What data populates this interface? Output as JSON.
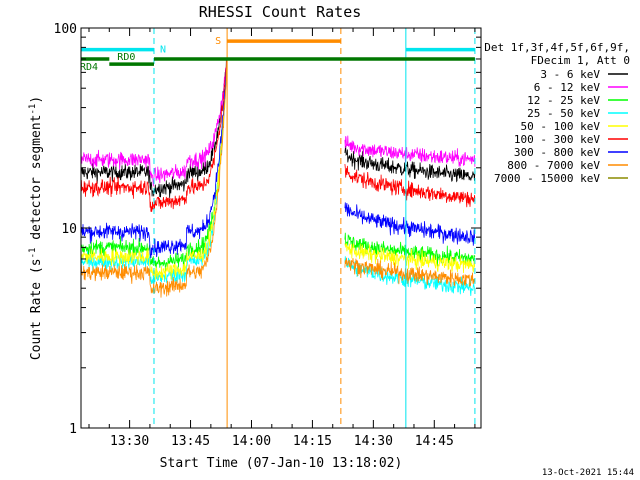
{
  "chart_data": {
    "type": "line",
    "title": "RHESSI Count Rates",
    "xlabel": "Start Time (07-Jan-10 13:18:02)",
    "ylabel": "Count Rate (s",
    "ylabel_sup": "-1",
    "ylabel_mid": " detector segment",
    "ylabel_tail": ")",
    "yscale": "log",
    "ylim": [
      1,
      100
    ],
    "xlim": [
      "13:18:02",
      "14:56:30"
    ],
    "x_ticks": [
      "13:30",
      "13:45",
      "14:00",
      "14:15",
      "14:30",
      "14:45"
    ],
    "y_ticks": [
      "1",
      "10",
      "100"
    ],
    "legend_placement": "right",
    "legend_header": [
      "Det 1f,3f,4f,5f,6f,9f,",
      "FDecim 1, Att 0"
    ],
    "series": [
      {
        "name": "3 - 6 keV",
        "color": "#000000",
        "pre_flare": 19,
        "post_flare": [
          24,
          18
        ]
      },
      {
        "name": "6 - 12 keV",
        "color": "#ff00ff",
        "pre_flare": 22,
        "post_flare": [
          27,
          22
        ]
      },
      {
        "name": "12 - 25 keV",
        "color": "#00ff00",
        "pre_flare": 8,
        "post_flare": [
          9,
          7
        ]
      },
      {
        "name": "25 - 50 keV",
        "color": "#00ffff",
        "pre_flare": 6.8,
        "post_flare": [
          7,
          5
        ]
      },
      {
        "name": "50 - 100 keV",
        "color": "#ffff00",
        "pre_flare": 7.2,
        "post_flare": [
          8.2,
          6.5
        ]
      },
      {
        "name": "100 - 300 keV",
        "color": "#ff0000",
        "pre_flare": 16,
        "post_flare": [
          20,
          14
        ]
      },
      {
        "name": "300 - 800 keV",
        "color": "#0000ff",
        "pre_flare": 9.6,
        "post_flare": [
          13,
          9
        ]
      },
      {
        "name": "800 - 7000 keV",
        "color": "#ff8c00",
        "pre_flare": 6,
        "post_flare": [
          7,
          5.5
        ]
      },
      {
        "name": "7000 - 15000 keV",
        "color": "#8b8b00",
        "pre_flare": null,
        "post_flare": null
      }
    ],
    "flags": [
      {
        "label": "N",
        "color": "#00e5ee",
        "start": "13:18:02",
        "end": "13:36:00",
        "value": 78
      },
      {
        "label": "N",
        "color": "#00e5ee",
        "start": "14:38:00",
        "end": "14:55:00",
        "value": 78
      },
      {
        "label": "RD0",
        "color": "#007700",
        "start": "13:25:00",
        "end": "13:36:00",
        "value": 66
      },
      {
        "label": "RD4",
        "color": "#007700",
        "start": "13:18:02",
        "end": "13:25:00",
        "value": 70
      },
      {
        "label": "",
        "color": "#007700",
        "start": "13:36:00",
        "end": "14:55:00",
        "value": 70
      },
      {
        "label": "S",
        "color": "#ff8c00",
        "start": "13:54:00",
        "end": "14:22:00",
        "value": 86
      }
    ],
    "vertical_lines": [
      {
        "time": "13:18:02",
        "color": "#00e5ee",
        "style": "solid"
      },
      {
        "time": "13:36:00",
        "color": "#00e5ee",
        "style": "dashed"
      },
      {
        "time": "13:54:00",
        "color": "#ff8c00",
        "style": "solid"
      },
      {
        "time": "14:22:00",
        "color": "#ff8c00",
        "style": "dashed"
      },
      {
        "time": "14:38:00",
        "color": "#00e5ee",
        "style": "solid"
      },
      {
        "time": "14:55:00",
        "color": "#00e5ee",
        "style": "dashed"
      }
    ],
    "data_gap": [
      "13:54:00",
      "14:23:00"
    ],
    "timestamp": "13-Oct-2021 15:44"
  }
}
